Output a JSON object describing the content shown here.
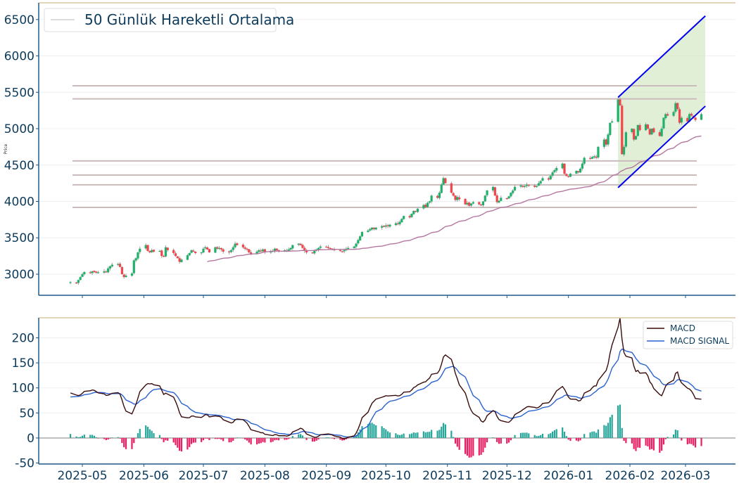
{
  "chart_data": [
    {
      "type": "candlestick",
      "title": "",
      "ylabel": "Price",
      "ylim": [
        2710,
        6730
      ],
      "yticks": [
        3000,
        3500,
        4000,
        4500,
        5000,
        5500,
        6000,
        6500
      ],
      "grid": true,
      "legend": {
        "placement": "top-left",
        "entries": [
          "50 Günlük Hareketli Ortalama"
        ]
      },
      "start_date": "2025-04-25",
      "frequency": "business-day",
      "closes": [
        2890,
        2880,
        2920,
        2960,
        3000,
        3030,
        3020,
        3040,
        3030,
        3020,
        3025,
        3040,
        3030,
        3080,
        3110,
        3130,
        3140,
        3100,
        3000,
        2960,
        2980,
        3010,
        3190,
        3220,
        3300,
        3350,
        3400,
        3320,
        3300,
        3330,
        3310,
        3320,
        3250,
        3240,
        3370,
        3330,
        3290,
        3250,
        3220,
        3170,
        3200,
        3260,
        3290,
        3330,
        3310,
        3290,
        3300,
        3350,
        3370,
        3340,
        3300,
        3370,
        3350,
        3360,
        3340,
        3310,
        3300,
        3330,
        3370,
        3420,
        3400,
        3370,
        3350,
        3340,
        3300,
        3280,
        3310,
        3330,
        3320,
        3340,
        3300,
        3310,
        3320,
        3350,
        3330,
        3310,
        3330,
        3320,
        3340,
        3360,
        3400,
        3420,
        3400,
        3360,
        3320,
        3300,
        3290,
        3320,
        3340,
        3360,
        3380,
        3370,
        3360,
        3350,
        3340,
        3330,
        3320,
        3310,
        3330,
        3350,
        3360,
        3380,
        3420,
        3470,
        3520,
        3580,
        3600,
        3620,
        3640,
        3620,
        3640,
        3660,
        3650,
        3670,
        3660,
        3680,
        3700,
        3690,
        3720,
        3760,
        3800,
        3780,
        3830,
        3870,
        3860,
        3900,
        3950,
        3920,
        3980,
        4000,
        4080,
        4050,
        4120,
        4230,
        4320,
        4250,
        4120,
        4080,
        4020,
        4060,
        4030,
        3960,
        3980,
        3940,
        3970,
        3990,
        3960,
        3950,
        4000,
        4080,
        4150,
        4200,
        4080,
        3990,
        4010,
        4050,
        4040,
        4070,
        4120,
        4150,
        4200,
        4220,
        4200,
        4210,
        4230,
        4220,
        4200,
        4210,
        4250,
        4280,
        4320,
        4300,
        4350,
        4400,
        4430,
        4460,
        4520,
        4380,
        4350,
        4340,
        4380,
        4420,
        4400,
        4450,
        4520,
        4600,
        4590,
        4610,
        4620,
        4600,
        4750,
        4850,
        4780,
        4920,
        5080,
        5100,
        5400,
        5320,
        4650,
        4750,
        4950,
        5000,
        4850,
        4900,
        5050,
        4980,
        5060,
        5000,
        4920,
        5000,
        4950,
        4900,
        5000,
        5150,
        5200,
        5180,
        5230,
        5350,
        5270,
        5080,
        5150,
        5100,
        5200,
        5180,
        5150,
        5120,
        5200
      ],
      "moving_average": {
        "name": "50 Günlük Hareketli Ortalama",
        "window": 50
      },
      "horizontal_levels": [
        5590,
        5410,
        4557,
        4363,
        4228,
        3918
      ],
      "channel": {
        "start_date": "2026-01-26",
        "end_date": "2026-03-11",
        "upper": [
          5430,
          6550
        ],
        "lower": [
          4190,
          5310
        ]
      },
      "colors": {
        "up": "#1fb16a",
        "down": "#f0454b",
        "wick": "#9a9a9a",
        "ma": "#b5779f",
        "levels": "#cbbcbc",
        "channel_line": "#0000ee",
        "channel_fill": "#d3e8c4"
      }
    },
    {
      "type": "line+bar",
      "title": "MACD",
      "ylim": [
        -52,
        240
      ],
      "yticks": [
        -50,
        0,
        50,
        100,
        150,
        200
      ],
      "grid": true,
      "legend": {
        "placement": "top-right",
        "entries": [
          "MACD",
          "MACD SIGNAL"
        ]
      },
      "series": [
        {
          "name": "MACD",
          "fast": 12,
          "slow": 26,
          "color": "#3a0c0c"
        },
        {
          "name": "MACD SIGNAL",
          "period": 9,
          "color": "#2a62d0"
        }
      ],
      "histogram_colors": {
        "positive": "#26a69a",
        "negative": "#e91e63"
      },
      "xticks": [
        "2025-05",
        "2025-06",
        "2025-07",
        "2025-08",
        "2025-09",
        "2025-10",
        "2025-11",
        "2025-12",
        "2026-01",
        "2026-02",
        "2026-03"
      ]
    }
  ]
}
